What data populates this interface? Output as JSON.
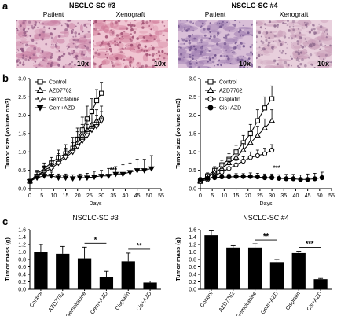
{
  "panel_a": {
    "letter": "a",
    "groups": [
      {
        "title": "NSCLC-SC #3",
        "images": [
          {
            "label": "Patient",
            "mag": "10x",
            "tint": [
              "#e9c6d6",
              "#c87fa3",
              "#8f5580"
            ]
          },
          {
            "label": "Xenograft",
            "mag": "10x",
            "tint": [
              "#f0c5d2",
              "#d07a98",
              "#9c4a6e"
            ]
          }
        ]
      },
      {
        "title": "NSCLC-SC #4",
        "images": [
          {
            "label": "Patient",
            "mag": "10x",
            "tint": [
              "#d9bfd8",
              "#a07fb2",
              "#6d4f8a"
            ]
          },
          {
            "label": "Xenograft",
            "mag": "10x",
            "tint": [
              "#e8cfdc",
              "#c79ab6",
              "#8f6a8e"
            ]
          }
        ]
      }
    ]
  },
  "panel_b_letter": "b",
  "panel_c_letter": "c",
  "chart_data": [
    {
      "type": "line",
      "panel": "b",
      "ylabel": "Tumor size  (volume cm3)",
      "xlabel": "Days",
      "xlim": [
        0,
        55
      ],
      "ylim": [
        0,
        3.0
      ],
      "xticks": [
        0,
        5,
        10,
        15,
        20,
        25,
        30,
        35,
        40,
        45,
        50,
        55
      ],
      "yticks": [
        0.0,
        0.5,
        1.0,
        1.5,
        2.0,
        2.5,
        3.0
      ],
      "annotations": [
        {
          "text": "***",
          "x": 35,
          "y": 0.45
        }
      ],
      "legend": "top-left",
      "series": [
        {
          "name": "Control",
          "marker": "square-open",
          "x": [
            0,
            3,
            6,
            9,
            12,
            15,
            18,
            20,
            22,
            24,
            26,
            28,
            30
          ],
          "y": [
            0.2,
            0.4,
            0.55,
            0.7,
            0.85,
            0.95,
            1.1,
            1.35,
            1.6,
            1.9,
            2.1,
            2.4,
            2.6
          ],
          "err": [
            0.05,
            0.1,
            0.15,
            0.15,
            0.2,
            0.25,
            0.3,
            0.3,
            0.35,
            0.35,
            0.35,
            0.3,
            0.3
          ]
        },
        {
          "name": "AZD7762",
          "marker": "triangle-up-open",
          "x": [
            0,
            3,
            6,
            9,
            12,
            15,
            18,
            20,
            22,
            24,
            26,
            28,
            30
          ],
          "y": [
            0.2,
            0.35,
            0.5,
            0.6,
            0.75,
            0.9,
            1.05,
            1.25,
            1.45,
            1.6,
            1.75,
            1.85,
            1.95
          ],
          "err": [
            0.05,
            0.1,
            0.12,
            0.15,
            0.2,
            0.2,
            0.25,
            0.3,
            0.3,
            0.3,
            0.3,
            0.3,
            0.3
          ]
        },
        {
          "name": "Gemcitabine",
          "marker": "triangle-down-open",
          "x": [
            0,
            3,
            6,
            9,
            12,
            15,
            18,
            20,
            22,
            24,
            26,
            28,
            30
          ],
          "y": [
            0.2,
            0.35,
            0.45,
            0.55,
            0.7,
            0.85,
            1.0,
            1.15,
            1.3,
            1.45,
            1.6,
            1.7,
            1.85
          ],
          "err": [
            0.05,
            0.1,
            0.12,
            0.15,
            0.2,
            0.2,
            0.25,
            0.25,
            0.3,
            0.3,
            0.3,
            0.3,
            0.25
          ]
        },
        {
          "name": "Gem+AZD",
          "marker": "triangle-down-filled",
          "x": [
            0,
            3,
            6,
            9,
            12,
            15,
            18,
            21,
            24,
            27,
            30,
            33,
            36,
            39,
            42,
            45,
            48,
            51
          ],
          "y": [
            0.2,
            0.3,
            0.35,
            0.35,
            0.3,
            0.3,
            0.28,
            0.3,
            0.3,
            0.32,
            0.35,
            0.35,
            0.4,
            0.4,
            0.45,
            0.5,
            0.5,
            0.55
          ],
          "err": [
            0.05,
            0.08,
            0.1,
            0.1,
            0.1,
            0.1,
            0.1,
            0.1,
            0.12,
            0.15,
            0.15,
            0.2,
            0.2,
            0.25,
            0.25,
            0.3,
            0.3,
            0.35
          ]
        }
      ]
    },
    {
      "type": "line",
      "panel": "b",
      "ylabel": "Tumor size  (volume cm3)",
      "xlabel": "Days",
      "xlim": [
        0,
        55
      ],
      "ylim": [
        0,
        3.0
      ],
      "xticks": [
        0,
        5,
        10,
        15,
        20,
        25,
        30,
        35,
        40,
        45,
        50,
        55
      ],
      "yticks": [
        0.0,
        0.5,
        1.0,
        1.5,
        2.0,
        2.5,
        3.0
      ],
      "annotations": [
        {
          "text": "***",
          "x": 32,
          "y": 0.5
        }
      ],
      "legend": "top-left",
      "series": [
        {
          "name": "Control",
          "marker": "square-open",
          "x": [
            0,
            3,
            6,
            9,
            12,
            15,
            18,
            21,
            24,
            27,
            30
          ],
          "y": [
            0.2,
            0.35,
            0.5,
            0.65,
            0.8,
            1.0,
            1.25,
            1.5,
            1.85,
            2.2,
            2.45
          ],
          "err": [
            0.05,
            0.08,
            0.1,
            0.12,
            0.15,
            0.18,
            0.2,
            0.25,
            0.3,
            0.3,
            0.35
          ]
        },
        {
          "name": "AZD7762",
          "marker": "triangle-up-open",
          "x": [
            0,
            3,
            6,
            9,
            12,
            15,
            18,
            21,
            24,
            27,
            30
          ],
          "y": [
            0.2,
            0.3,
            0.45,
            0.55,
            0.7,
            0.85,
            1.05,
            1.25,
            1.45,
            1.65,
            1.85
          ],
          "err": [
            0.05,
            0.08,
            0.1,
            0.12,
            0.12,
            0.15,
            0.18,
            0.2,
            0.25,
            0.25,
            0.3
          ]
        },
        {
          "name": "Cisplatin",
          "marker": "circle-open",
          "x": [
            0,
            3,
            6,
            9,
            12,
            15,
            18,
            21,
            24,
            27,
            30
          ],
          "y": [
            0.2,
            0.25,
            0.35,
            0.45,
            0.55,
            0.65,
            0.75,
            0.85,
            0.9,
            0.95,
            1.05
          ],
          "err": [
            0.05,
            0.06,
            0.08,
            0.1,
            0.1,
            0.12,
            0.12,
            0.15,
            0.15,
            0.15,
            0.15
          ]
        },
        {
          "name": "Cis+AZD",
          "marker": "circle-filled",
          "x": [
            0,
            3,
            6,
            9,
            12,
            15,
            18,
            21,
            24,
            27,
            30,
            33,
            36,
            39,
            42,
            45,
            48,
            51
          ],
          "y": [
            0.25,
            0.28,
            0.3,
            0.32,
            0.32,
            0.33,
            0.33,
            0.33,
            0.32,
            0.3,
            0.3,
            0.28,
            0.27,
            0.27,
            0.25,
            0.25,
            0.27,
            0.3
          ],
          "err": [
            0.05,
            0.05,
            0.06,
            0.06,
            0.08,
            0.08,
            0.08,
            0.1,
            0.1,
            0.1,
            0.1,
            0.1,
            0.12,
            0.12,
            0.12,
            0.15,
            0.15,
            0.15
          ]
        }
      ]
    },
    {
      "type": "bar",
      "panel": "c",
      "title": "NSCLC-SC #3",
      "ylabel": "Tumor mass (g)",
      "ylim": [
        0,
        1.6
      ],
      "yticks": [
        0.0,
        0.2,
        0.4,
        0.6,
        0.8,
        1.0,
        1.2,
        1.4,
        1.6
      ],
      "categories": [
        "Control",
        "AZD7762",
        "Gemcitabine",
        "Gem+AZD",
        "Cisplatin",
        "Cis+AZD"
      ],
      "values": [
        1.0,
        0.95,
        0.83,
        0.33,
        0.75,
        0.18
      ],
      "errors": [
        0.2,
        0.2,
        0.3,
        0.15,
        0.22,
        0.04
      ],
      "significance": [
        {
          "from": 2,
          "to": 3,
          "text": "*"
        },
        {
          "from": 4,
          "to": 5,
          "text": "**"
        }
      ]
    },
    {
      "type": "bar",
      "panel": "c",
      "title": "NSCLC-SC #4",
      "ylabel": "Tumor mass (g)",
      "ylim": [
        0,
        1.6
      ],
      "yticks": [
        0.0,
        0.2,
        0.4,
        0.6,
        0.8,
        1.0,
        1.2,
        1.4,
        1.6
      ],
      "categories": [
        "Control",
        "AZD7762",
        "Gemcitabine",
        "Gem+AZD",
        "Cisplatin",
        "Cis+AZD"
      ],
      "values": [
        1.45,
        1.12,
        1.12,
        0.73,
        0.97,
        0.27
      ],
      "errors": [
        0.12,
        0.05,
        0.1,
        0.07,
        0.05,
        0.02
      ],
      "significance": [
        {
          "from": 2,
          "to": 3,
          "text": "**"
        },
        {
          "from": 4,
          "to": 5,
          "text": "***"
        }
      ]
    }
  ]
}
